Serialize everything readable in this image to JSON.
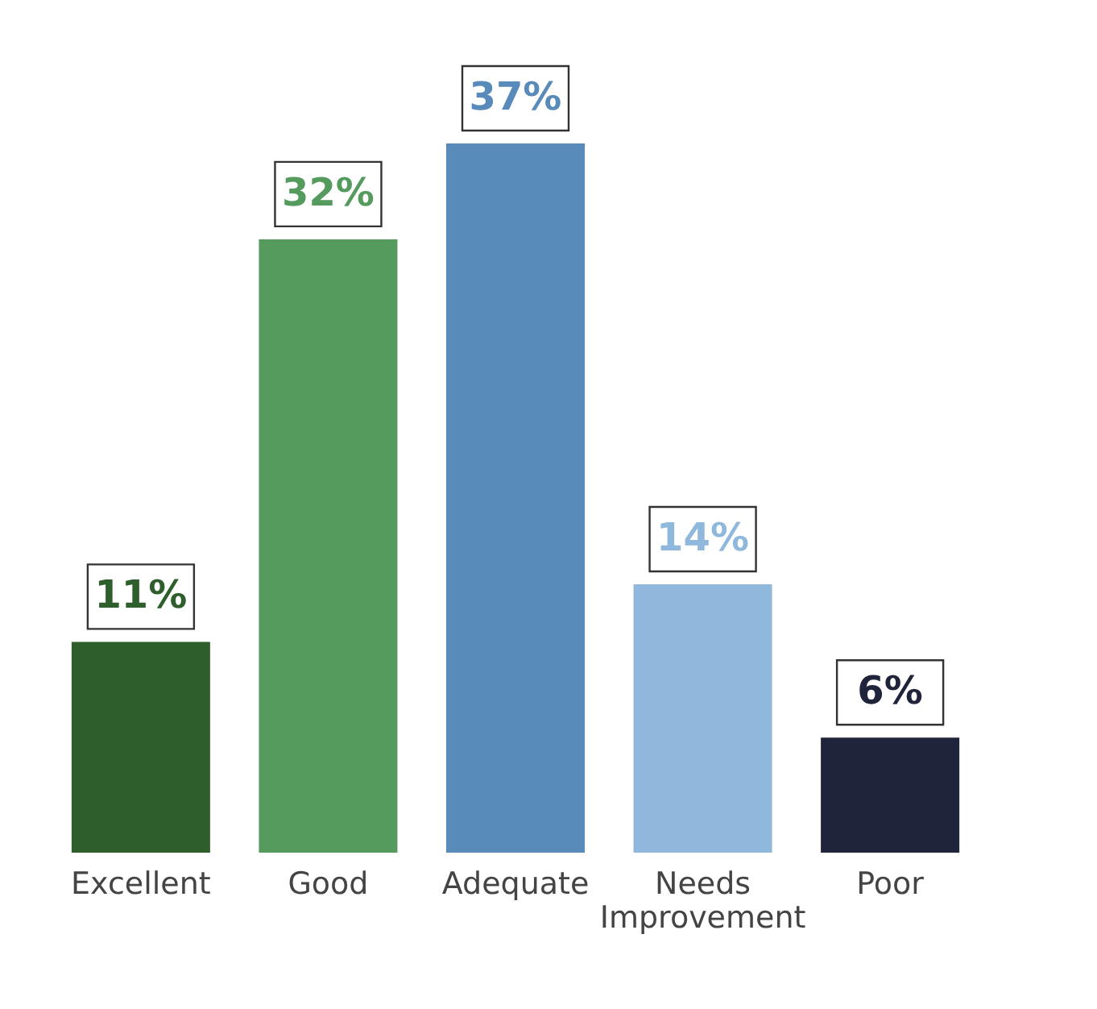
{
  "chart_data": {
    "type": "bar",
    "categories": [
      "Excellent",
      "Good",
      "Adequate",
      "Needs Improvement",
      "Poor"
    ],
    "values": [
      11,
      32,
      37,
      14,
      6
    ],
    "colors": [
      "#2f5e2d",
      "#559b5e",
      "#588bba",
      "#8fb8dc",
      "#1f243a"
    ],
    "value_labels": [
      "11%",
      "32%",
      "37%",
      "14%",
      "6%"
    ],
    "grid": false
  }
}
